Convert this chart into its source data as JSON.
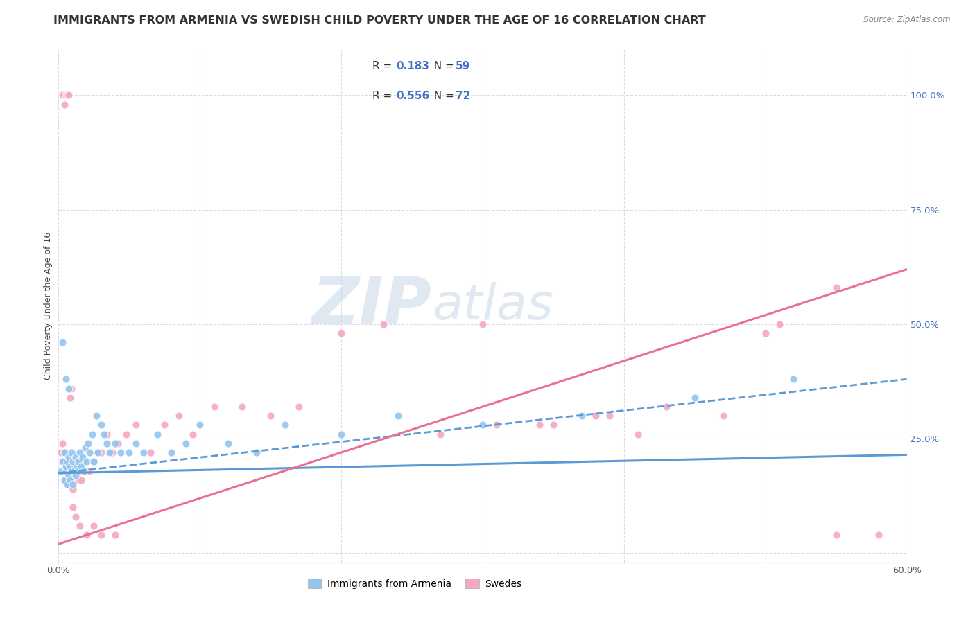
{
  "title": "IMMIGRANTS FROM ARMENIA VS SWEDISH CHILD POVERTY UNDER THE AGE OF 16 CORRELATION CHART",
  "source": "Source: ZipAtlas.com",
  "ylabel": "Child Poverty Under the Age of 16",
  "xlim": [
    0.0,
    0.6
  ],
  "ylim": [
    -0.02,
    1.1
  ],
  "x_ticks": [
    0.0,
    0.1,
    0.2,
    0.3,
    0.4,
    0.5,
    0.6
  ],
  "x_tick_labels": [
    "0.0%",
    "",
    "",
    "",
    "",
    "",
    "60.0%"
  ],
  "y_ticks_right": [
    0.0,
    0.25,
    0.5,
    0.75,
    1.0
  ],
  "y_tick_labels_right": [
    "",
    "25.0%",
    "50.0%",
    "75.0%",
    "100.0%"
  ],
  "color_blue": "#92C5F0",
  "color_pink": "#F5A8C0",
  "color_blue_line": "#5B9BD5",
  "color_pink_line": "#E87090",
  "color_blue_text": "#4472C4",
  "grid_color": "#D8DCE8",
  "watermark_color": "#C8D8E8",
  "legend1_label": "Immigrants from Armenia",
  "legend2_label": "Swedes",
  "blue_scatter_x": [
    0.002,
    0.003,
    0.004,
    0.004,
    0.005,
    0.005,
    0.006,
    0.006,
    0.007,
    0.007,
    0.008,
    0.008,
    0.009,
    0.009,
    0.01,
    0.01,
    0.011,
    0.012,
    0.012,
    0.013,
    0.014,
    0.014,
    0.015,
    0.016,
    0.017,
    0.018,
    0.019,
    0.02,
    0.021,
    0.022,
    0.024,
    0.025,
    0.027,
    0.028,
    0.03,
    0.032,
    0.034,
    0.036,
    0.04,
    0.044,
    0.05,
    0.055,
    0.06,
    0.07,
    0.08,
    0.09,
    0.1,
    0.12,
    0.14,
    0.16,
    0.2,
    0.24,
    0.3,
    0.37,
    0.45,
    0.52,
    0.003,
    0.005,
    0.007
  ],
  "blue_scatter_y": [
    0.18,
    0.2,
    0.16,
    0.22,
    0.18,
    0.19,
    0.2,
    0.15,
    0.17,
    0.21,
    0.19,
    0.16,
    0.22,
    0.18,
    0.2,
    0.15,
    0.18,
    0.21,
    0.17,
    0.19,
    0.2,
    0.18,
    0.22,
    0.19,
    0.21,
    0.18,
    0.23,
    0.2,
    0.24,
    0.22,
    0.26,
    0.2,
    0.3,
    0.22,
    0.28,
    0.26,
    0.24,
    0.22,
    0.24,
    0.22,
    0.22,
    0.24,
    0.22,
    0.26,
    0.22,
    0.24,
    0.28,
    0.24,
    0.22,
    0.28,
    0.26,
    0.3,
    0.28,
    0.3,
    0.34,
    0.38,
    0.46,
    0.38,
    0.36
  ],
  "pink_scatter_x": [
    0.002,
    0.003,
    0.003,
    0.004,
    0.004,
    0.005,
    0.005,
    0.006,
    0.007,
    0.007,
    0.008,
    0.008,
    0.009,
    0.009,
    0.01,
    0.01,
    0.011,
    0.012,
    0.013,
    0.014,
    0.015,
    0.016,
    0.018,
    0.02,
    0.022,
    0.025,
    0.028,
    0.03,
    0.034,
    0.038,
    0.042,
    0.048,
    0.055,
    0.065,
    0.075,
    0.085,
    0.095,
    0.11,
    0.13,
    0.15,
    0.17,
    0.2,
    0.23,
    0.27,
    0.31,
    0.35,
    0.39,
    0.43,
    0.47,
    0.51,
    0.55,
    0.003,
    0.004,
    0.005,
    0.006,
    0.007,
    0.008,
    0.009,
    0.01,
    0.012,
    0.015,
    0.02,
    0.025,
    0.03,
    0.04,
    0.34,
    0.38,
    0.41,
    0.55,
    0.58,
    0.3,
    0.5
  ],
  "pink_scatter_y": [
    0.22,
    0.2,
    0.24,
    0.18,
    0.22,
    0.2,
    0.16,
    0.18,
    0.2,
    0.15,
    0.18,
    0.16,
    0.2,
    0.18,
    0.16,
    0.14,
    0.18,
    0.2,
    0.17,
    0.16,
    0.18,
    0.16,
    0.2,
    0.18,
    0.18,
    0.2,
    0.22,
    0.22,
    0.26,
    0.22,
    0.24,
    0.26,
    0.28,
    0.22,
    0.28,
    0.3,
    0.26,
    0.32,
    0.32,
    0.3,
    0.32,
    0.48,
    0.5,
    0.26,
    0.28,
    0.28,
    0.3,
    0.32,
    0.3,
    0.5,
    0.58,
    1.0,
    0.98,
    1.0,
    1.0,
    1.0,
    0.34,
    0.36,
    0.1,
    0.08,
    0.06,
    0.04,
    0.06,
    0.04,
    0.04,
    0.28,
    0.3,
    0.26,
    0.04,
    0.04,
    0.5,
    0.48
  ],
  "blue_line": {
    "x0": 0.0,
    "x1": 0.6,
    "y0": 0.175,
    "y1": 0.215
  },
  "blue_dashed_line": {
    "x0": 0.0,
    "x1": 0.6,
    "y0": 0.175,
    "y1": 0.38
  },
  "pink_line": {
    "x0": 0.0,
    "x1": 0.6,
    "y0": 0.02,
    "y1": 0.62
  },
  "title_fontsize": 11.5,
  "axis_label_fontsize": 9,
  "tick_fontsize": 9.5,
  "legend_fontsize": 11
}
